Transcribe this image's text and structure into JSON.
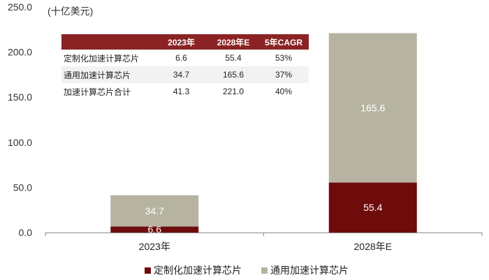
{
  "chart_data": {
    "type": "bar",
    "stacked": true,
    "unit_label": "(十亿美元)",
    "categories": [
      "2023年",
      "2028年E"
    ],
    "series": [
      {
        "name": "定制化加速计算芯片",
        "values": [
          6.6,
          55.4
        ],
        "color": "#6e0b0b"
      },
      {
        "name": "通用加速计算芯片",
        "values": [
          34.7,
          165.6
        ],
        "color": "#b6b3a1"
      }
    ],
    "ylim": [
      0,
      250
    ],
    "yticks": [
      "0.0",
      "50.0",
      "100.0",
      "150.0",
      "200.0",
      "250.0"
    ],
    "legend_position": "bottom",
    "table": {
      "headers": [
        "",
        "2023年",
        "2028年E",
        "5年CAGR"
      ],
      "rows": [
        [
          "定制化加速计算芯片",
          "6.6",
          "55.4",
          "53%"
        ],
        [
          "通用加速计算芯片",
          "34.7",
          "165.6",
          "37%"
        ],
        [
          "加速计算芯片合计",
          "41.3",
          "221.0",
          "40%"
        ]
      ],
      "header_color": "#8b2324"
    }
  }
}
